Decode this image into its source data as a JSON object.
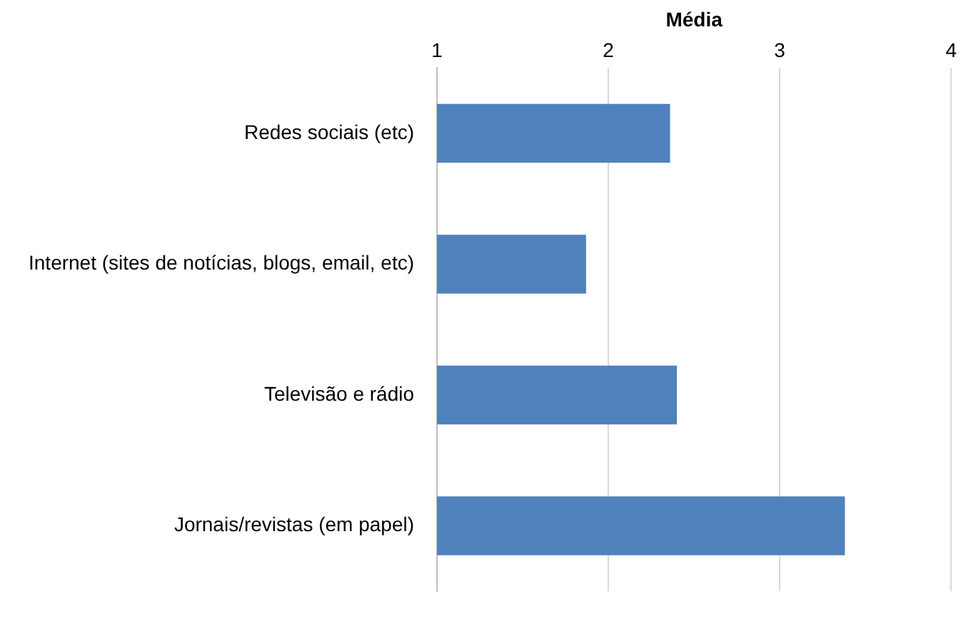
{
  "chart_data": {
    "type": "bar",
    "orientation": "horizontal",
    "xlabel": "Média",
    "categories": [
      "Redes sociais (etc)",
      "Internet (sites de notícias, blogs, email, etc)",
      "Televisão e rádio",
      "Jornais/revistas (em papel)"
    ],
    "values": [
      2.36,
      1.87,
      2.4,
      3.38
    ],
    "color": "#4f81bd",
    "xlim": [
      1,
      4
    ],
    "xticks": [
      1,
      2,
      3,
      4
    ],
    "grid": "x",
    "legend": false
  }
}
